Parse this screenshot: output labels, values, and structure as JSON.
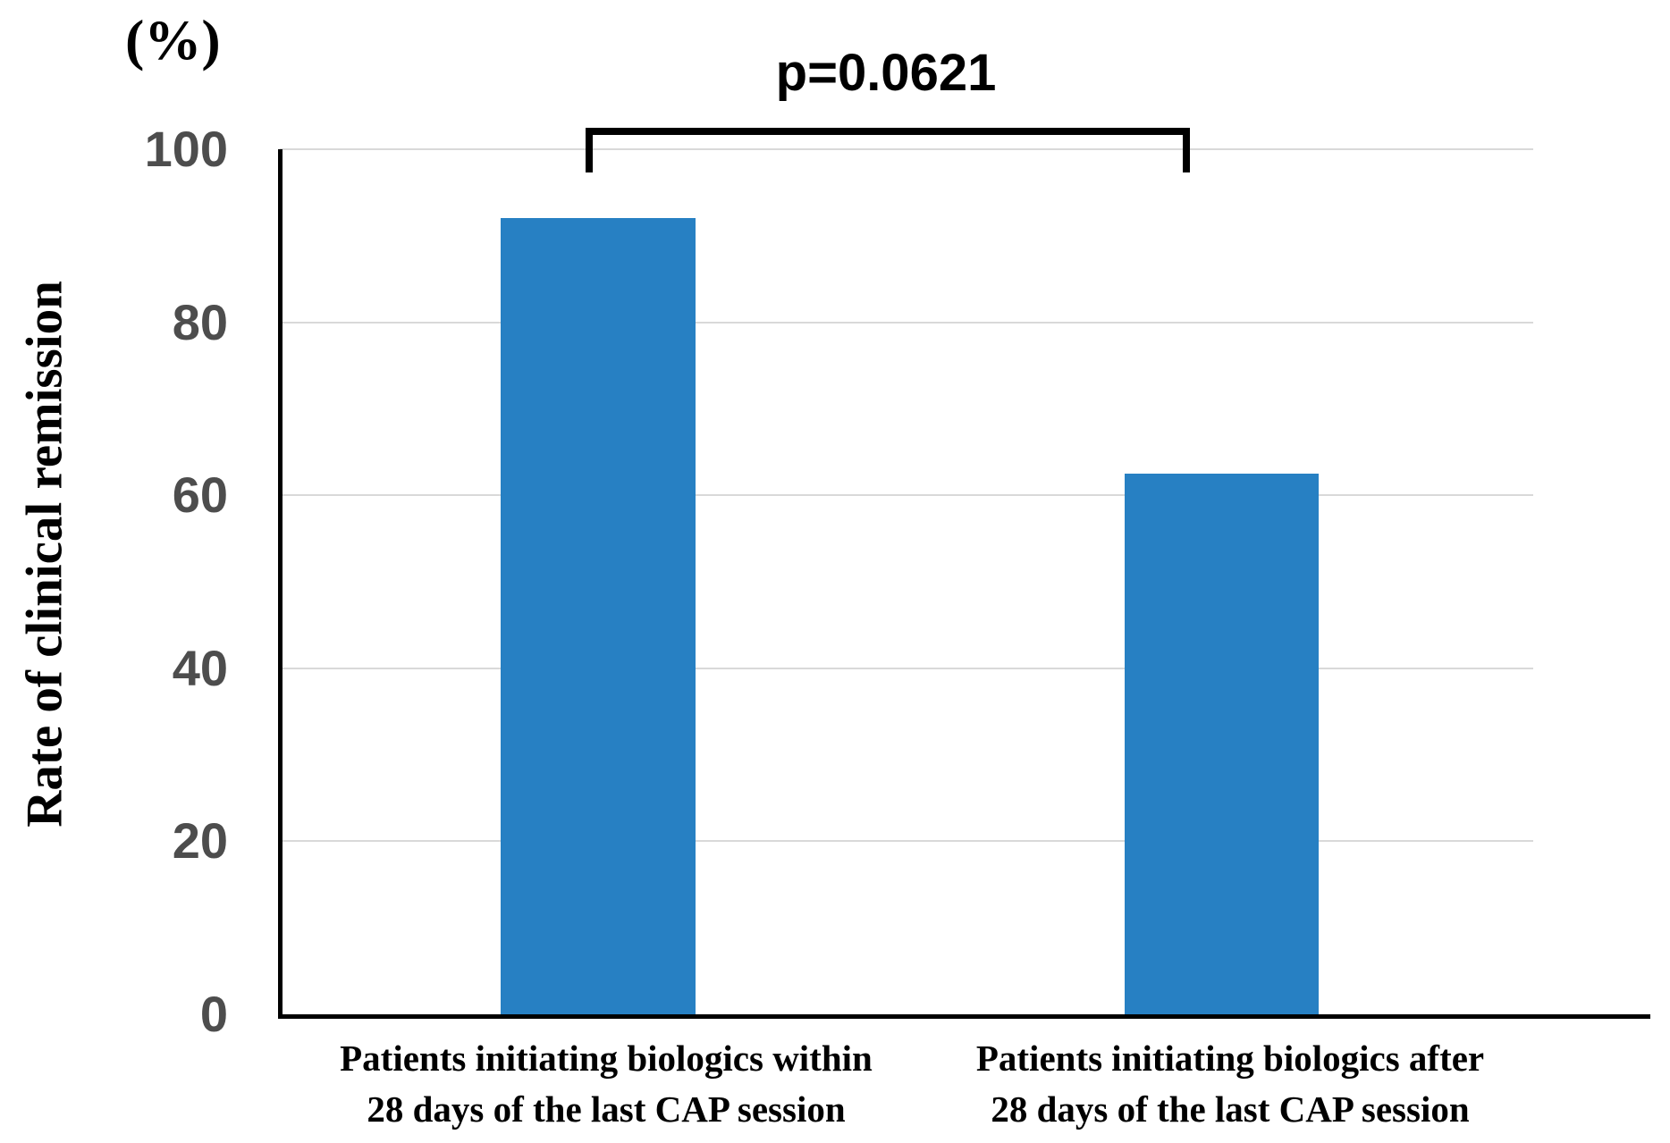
{
  "chart_data": {
    "type": "bar",
    "unit_label": "(%)",
    "ylabel": "Rate of clinical remission",
    "ylim": [
      0,
      100
    ],
    "yticks": [
      100,
      80,
      60,
      40,
      20,
      0
    ],
    "grid": "horizontal",
    "legend": "none",
    "categories": [
      [
        "Patients initiating biologics within",
        "28 days of the last CAP session"
      ],
      [
        "Patients initiating biologics after",
        "28 days of the last CAP session"
      ]
    ],
    "values": [
      92,
      62.5
    ],
    "annotation": {
      "text": "p=0.0621",
      "connects_categories": [
        0,
        1
      ]
    }
  },
  "colors": {
    "bar": "#2780C3",
    "gridline": "#D9D9D9",
    "axis": "#000000",
    "tick_label": "#4D4D4D",
    "text": "#000000"
  }
}
